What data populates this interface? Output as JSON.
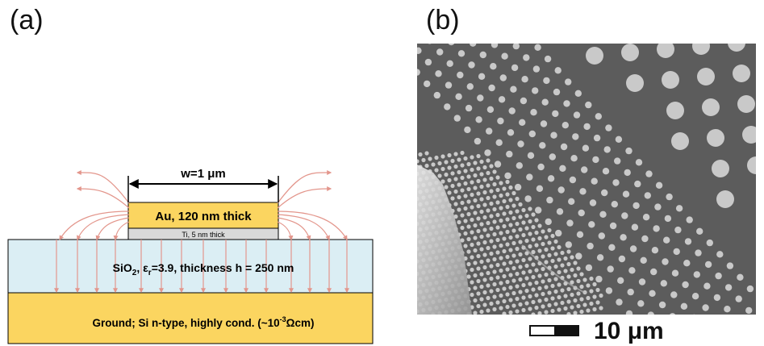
{
  "panel_a": {
    "label": "(a)",
    "width_label": "w=1 μm",
    "au_label": "Au, 120 nm thick",
    "ti_label": "Ti, 5 nm thick",
    "oxide": {
      "pre": "SiO",
      "sub1": "2",
      "mid1": ", ε",
      "sub2": "r",
      "post": "=3.9, thickness h = 250 nm"
    },
    "ground": {
      "pre": "Ground; Si n-type, highly cond. (~10",
      "sup": "-3",
      "post": "Ωcm)"
    },
    "colors": {
      "gold": "#fbd560",
      "oxide": "#dbeef4",
      "ti": "#d9d9d9",
      "field_lines": "#e3968c"
    }
  },
  "panel_b": {
    "label": "(b)",
    "image": "sem-micrograph-dot-arrays",
    "scale_bar_label": "10 μm",
    "colors": {
      "background": "#5c5c5c",
      "dots": "#c9c9c9"
    }
  }
}
